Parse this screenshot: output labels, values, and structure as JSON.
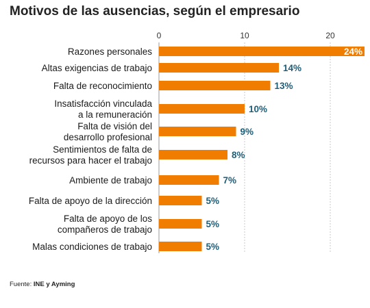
{
  "title": "Motivos de las ausencias, según el empresario",
  "source": {
    "label": "Fuente:",
    "value": "INE y Ayming"
  },
  "chart_data": {
    "type": "bar",
    "orientation": "horizontal",
    "title": "Motivos de las ausencias, según el empresario",
    "xlim": [
      0,
      24
    ],
    "xticks": [
      0,
      10,
      20
    ],
    "grid": true,
    "bar_color": "#f07c00",
    "label_color": "#1f5f7a",
    "categories": [
      [
        "Razones personales"
      ],
      [
        "Altas exigencias de trabajo"
      ],
      [
        "Falta de reconocimiento"
      ],
      [
        "Insatisfacción vinculada",
        "a la remuneración"
      ],
      [
        "Falta de visión del",
        "desarrollo profesional"
      ],
      [
        "Sentimientos de falta de",
        "recursos para hacer el trabajo"
      ],
      [
        "Ambiente de trabajo"
      ],
      [
        "Falta de apoyo de la dirección"
      ],
      [
        "Falta de apoyo de los",
        "compañeros de trabajo"
      ],
      [
        "Malas condiciones de trabajo"
      ]
    ],
    "values": [
      24,
      14,
      13,
      10,
      9,
      8,
      7,
      5,
      5,
      5
    ],
    "value_labels": [
      "24%",
      "14%",
      "13%",
      "10%",
      "9%",
      "8%",
      "7%",
      "5%",
      "5%",
      "5%"
    ]
  }
}
